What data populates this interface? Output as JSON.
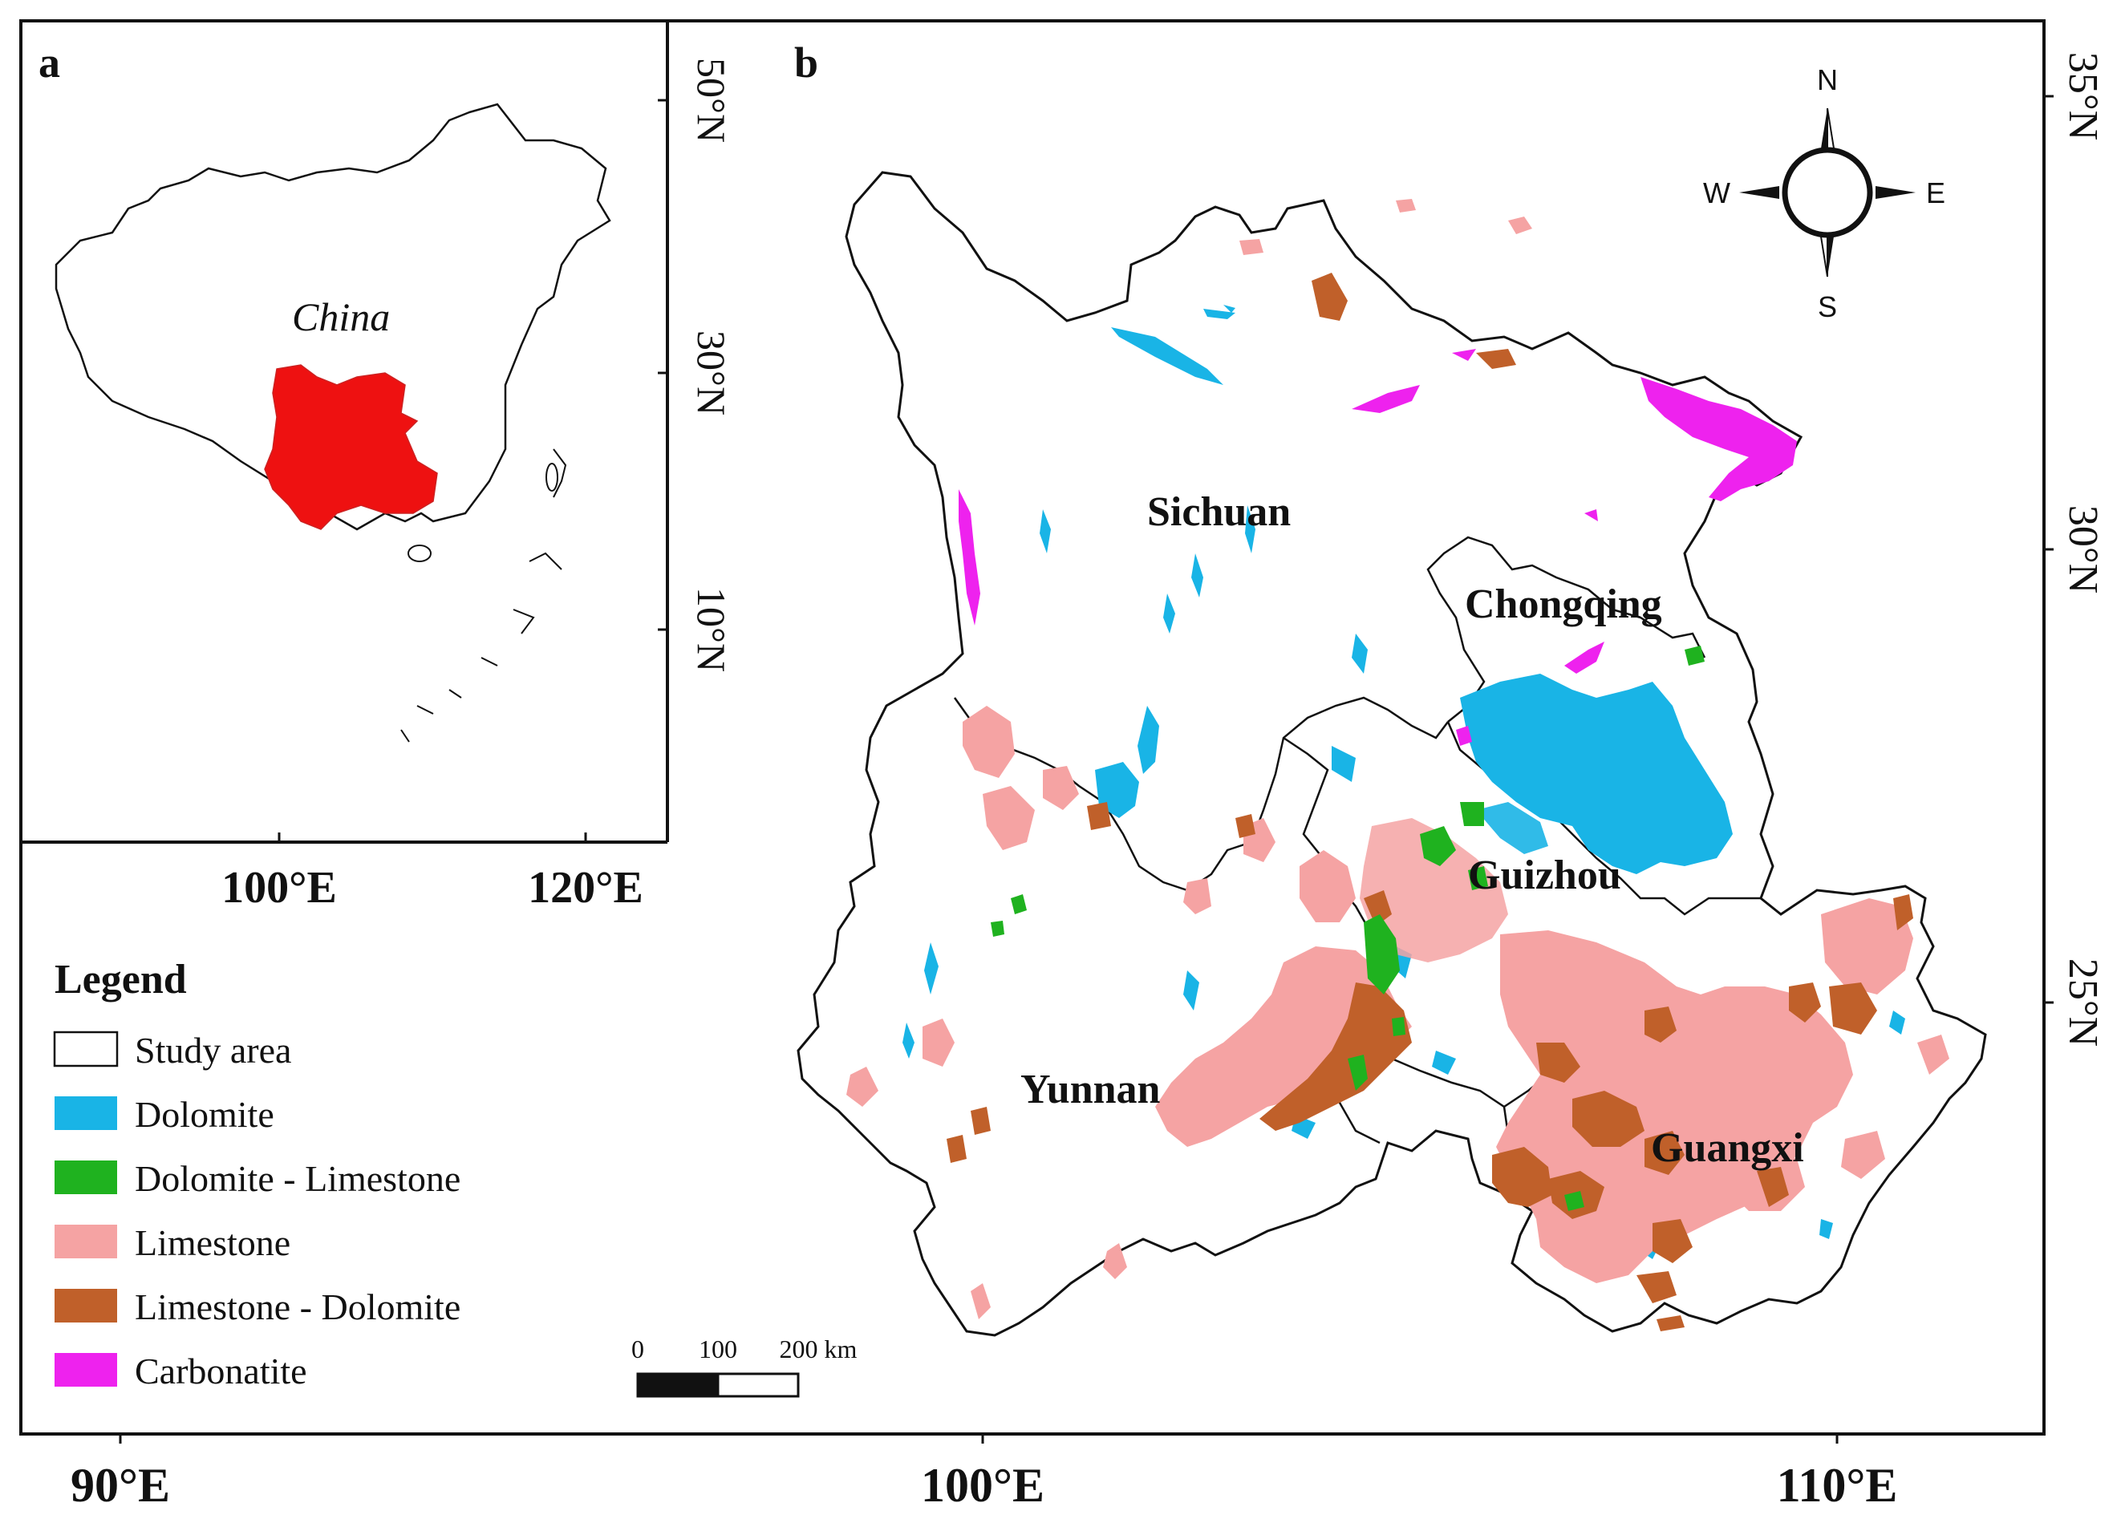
{
  "panel_a": {
    "letter": "a",
    "country_label": "China",
    "lat_ticks": [
      "50°N",
      "30°N",
      "10°N"
    ],
    "lon_ticks": [
      "100°E",
      "120°E"
    ]
  },
  "panel_b": {
    "letter": "b",
    "provinces": [
      "Sichuan",
      "Chongqing",
      "Guizhou",
      "Yunnan",
      "Guangxi"
    ],
    "lat_ticks": [
      "35°N",
      "30°N",
      "25°N"
    ],
    "lon_ticks": [
      "90°E",
      "100°E",
      "110°E"
    ],
    "compass": {
      "n": "N",
      "e": "E",
      "s": "S",
      "w": "W"
    },
    "scale_bar": {
      "ticks": [
        "0",
        "100",
        "200 km"
      ]
    }
  },
  "legend": {
    "title": "Legend",
    "items": [
      {
        "label": "Study area",
        "color": "#ffffff"
      },
      {
        "label": "Dolomite",
        "color": "#19b4e6"
      },
      {
        "label": "Dolomite - Limestone",
        "color": "#1fb21f"
      },
      {
        "label": "Limestone",
        "color": "#f5a3a3"
      },
      {
        "label": "Limestone - Dolomite",
        "color": "#c0602a"
      },
      {
        "label": "Carbonatite",
        "color": "#ee22ee"
      }
    ]
  },
  "colors": {
    "study_area_highlight": "#ee1111",
    "outline": "#111111"
  }
}
